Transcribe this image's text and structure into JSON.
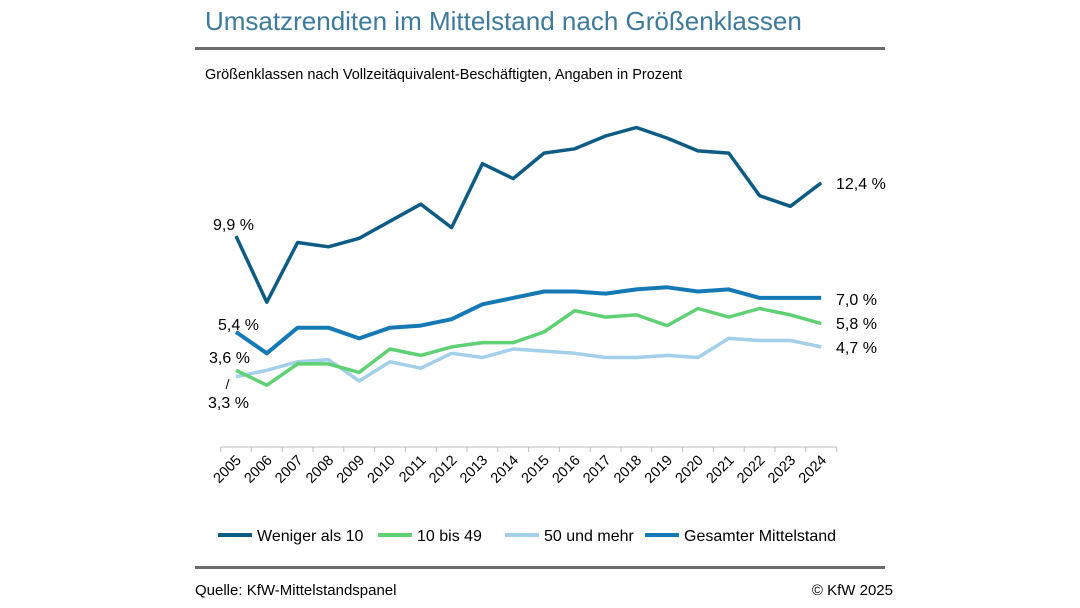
{
  "title": "Umsatzrenditen im Mittelstand nach Größenklassen",
  "subtitle": "Größenklassen nach Vollzeitäquivalent-Beschäftigten, Angaben in Prozent",
  "source": "Quelle: KfW-Mittelstandspanel",
  "copyright": "© KfW 2025",
  "chart_data": {
    "type": "line",
    "title": "Umsatzrenditen im Mittelstand nach Größenklassen",
    "subtitle": "Größenklassen nach Vollzeitäquivalent-Beschäftigten, Angaben in Prozent",
    "x": [
      "2005",
      "2006",
      "2007",
      "2008",
      "2009",
      "2010",
      "2011",
      "2012",
      "2013",
      "2014",
      "2015",
      "2016",
      "2017",
      "2018",
      "2019",
      "2020",
      "2021",
      "2022",
      "2023",
      "2024"
    ],
    "ylim": [
      0,
      16
    ],
    "grid": false,
    "legend_position": "bottom",
    "series": [
      {
        "name": "Weniger als 10",
        "color": "#0e5c84",
        "values": [
          9.9,
          6.8,
          9.6,
          9.4,
          9.8,
          10.6,
          11.4,
          10.3,
          13.3,
          12.6,
          13.8,
          14.0,
          14.6,
          15.0,
          14.5,
          13.9,
          13.8,
          11.8,
          11.3,
          12.4
        ]
      },
      {
        "name": "10 bis 49",
        "color": "#5fd174",
        "values": [
          3.6,
          2.9,
          3.9,
          3.9,
          3.5,
          4.6,
          4.3,
          4.7,
          4.9,
          4.9,
          5.4,
          6.4,
          6.1,
          6.2,
          5.7,
          6.5,
          6.1,
          6.5,
          6.2,
          5.8
        ]
      },
      {
        "name": "50 und mehr",
        "color": "#a3cfe8",
        "values": [
          3.3,
          3.6,
          4.0,
          4.1,
          3.1,
          4.0,
          3.7,
          4.4,
          4.2,
          4.6,
          4.5,
          4.4,
          4.2,
          4.2,
          4.3,
          4.2,
          5.1,
          5.0,
          5.0,
          4.7
        ]
      },
      {
        "name": "Gesamter Mittelstand",
        "color": "#1479b5",
        "values": [
          5.4,
          4.4,
          5.6,
          5.6,
          5.1,
          5.6,
          5.7,
          6.0,
          6.7,
          7.0,
          7.3,
          7.3,
          7.2,
          7.4,
          7.5,
          7.3,
          7.4,
          7.0,
          7.0,
          7.0
        ]
      }
    ],
    "annotations": {
      "start": [
        "9,9 %",
        "3,6 %",
        "3,3 %",
        "5,4 %"
      ],
      "end": [
        "12,4 %",
        "5,8 %",
        "4,7 %",
        "7,0 %"
      ]
    }
  }
}
